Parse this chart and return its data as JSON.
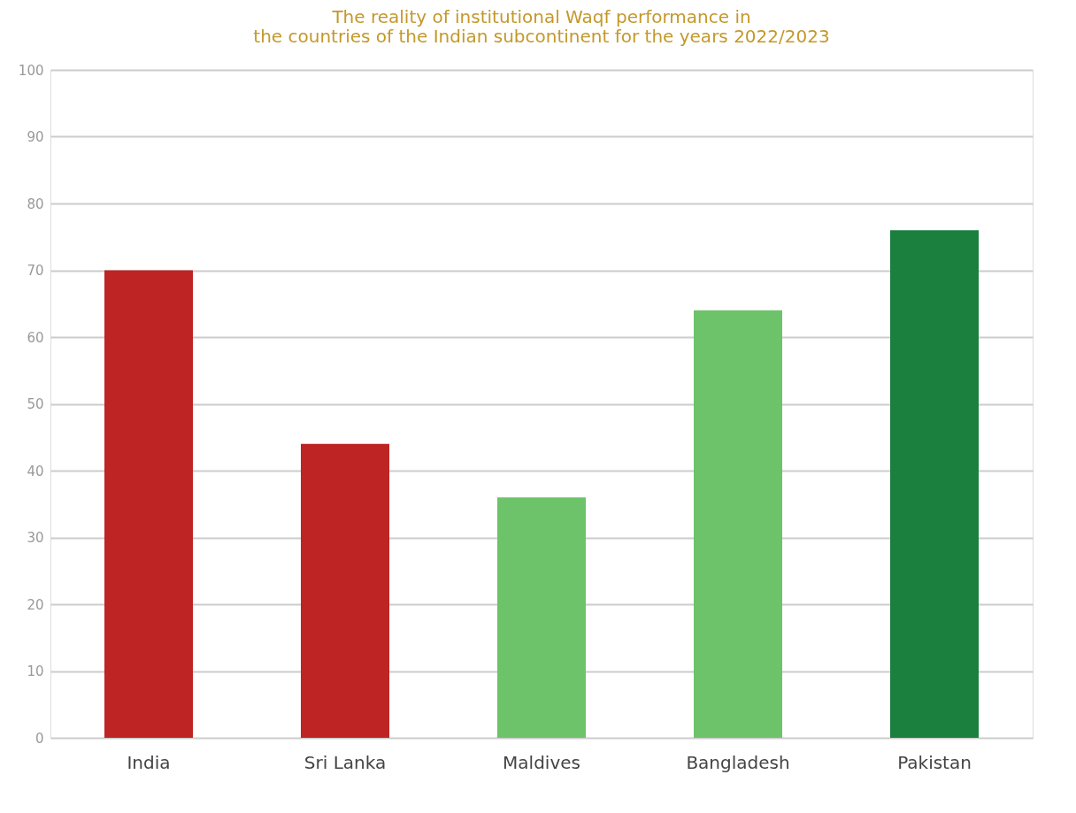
{
  "chart_data": {
    "type": "bar",
    "title": "The reality of institutional Waqf performance in\nthe countries of the Indian subcontinent for the years 2022/2023",
    "categories": [
      "India",
      "Sri Lanka",
      "Maldives",
      "Bangladesh",
      "Pakistan"
    ],
    "values": [
      70,
      44,
      36,
      64,
      76
    ],
    "colors": [
      "#be2424",
      "#be2424",
      "#6cc36a",
      "#6cc36a",
      "#1b7f3e"
    ],
    "ylim": [
      0,
      100
    ],
    "yticks": [
      0,
      10,
      20,
      30,
      40,
      50,
      60,
      70,
      80,
      90,
      100
    ],
    "grid": "y"
  }
}
